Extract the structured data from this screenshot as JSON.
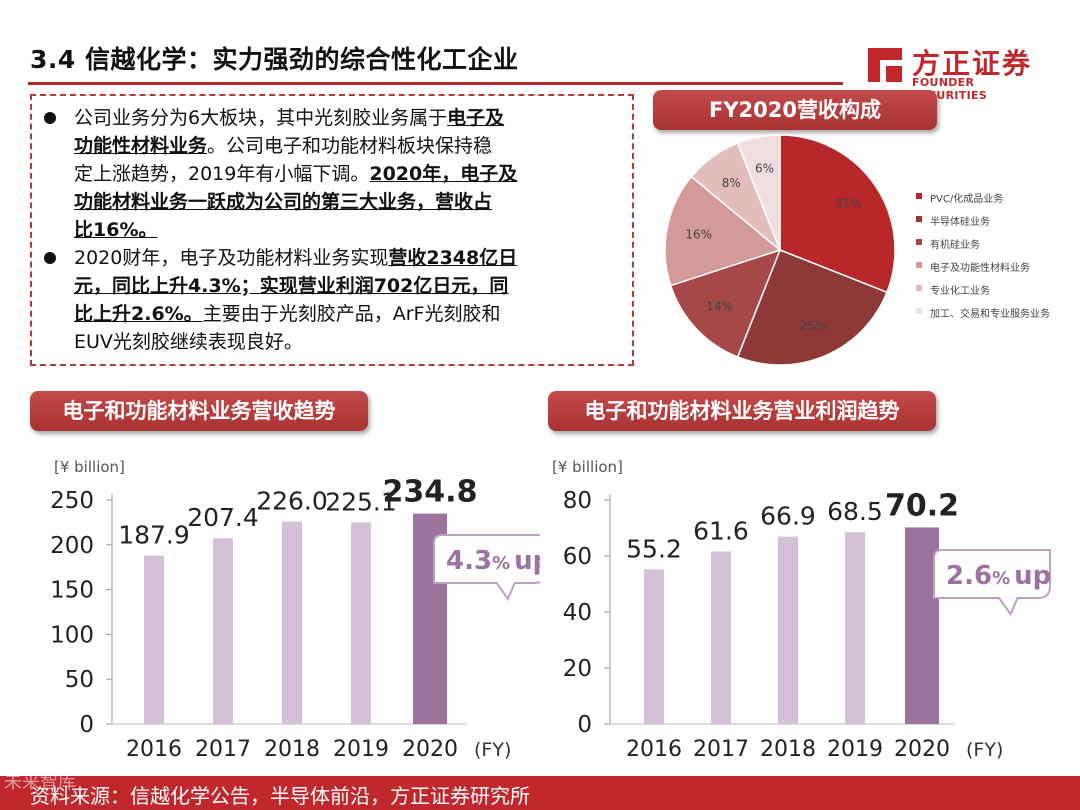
{
  "header": {
    "title": "3.4 信越化学：实力强劲的综合性化工企业",
    "logo_cn": "方正证券",
    "logo_en": "FOUNDER SECURITIES"
  },
  "bullets": {
    "b1_lines": [
      [
        "公司业务分为6大板块，其中光刻胶业务属于",
        "电子及"
      ],
      [
        "",
        "功能性材料业务",
        "。公司电子和功能材料板块保持稳"
      ],
      [
        "定上涨趋势，2019年有小幅下调。",
        "2020年，电子及"
      ],
      [
        "",
        "功能材料业务一跃成为公司的第三大业务，营收占"
      ],
      [
        "",
        "比16%。"
      ]
    ],
    "b2_lines": [
      [
        "2020财年，电子及功能材料业务实现",
        "营收2348亿日"
      ],
      [
        "",
        "元，同比上升4.3%；实现营业利润702亿日元，同"
      ],
      [
        "",
        "比上升2.6%。",
        "主要由于光刻胶产品，ArF光刻胶和"
      ],
      [
        "EUV光刻胶继续表现良好。"
      ]
    ]
  },
  "pie_title": "FY2020营收构成",
  "left_chart_title": "电子和功能材料业务营收趋势",
  "right_chart_title": "电子和功能材料业务营业利润趋势",
  "footer": {
    "source": "资料来源：信越化学公告，半导体前沿，方正证券研究所",
    "watermark": "未来智库"
  },
  "colors": {
    "brand_red": "#c0282d",
    "bar_light": "#d4c1d8",
    "bar_highlight": "#9c729f",
    "callout_text": "#9c729f"
  },
  "chart_data": [
    {
      "type": "pie",
      "title": "FY2020营收构成",
      "labels": [
        "PVC/化成品业务",
        "半导体硅业务",
        "有机硅业务",
        "电子及功能性材料业务",
        "专业化工业务",
        "加工、交易和专业服务业务"
      ],
      "values": [
        31,
        25,
        14,
        16,
        8,
        6
      ],
      "value_labels": [
        "31%",
        "25%",
        "14%",
        "16%",
        "8%",
        "6%"
      ],
      "colors": [
        "#b8282b",
        "#8f3838",
        "#a64848",
        "#d49a9a",
        "#e3bcbc",
        "#f0dede"
      ],
      "legend_position": "right"
    },
    {
      "type": "bar",
      "title": "电子和功能材料业务营收趋势",
      "unit_label": "[¥ billion]",
      "categories": [
        "2016",
        "2017",
        "2018",
        "2019",
        "2020"
      ],
      "values": [
        187.9,
        207.4,
        226.0,
        225.1,
        234.8
      ],
      "value_labels": [
        "187.9",
        "207.4",
        "226.0",
        "225.1",
        "234.8"
      ],
      "highlight_index": 4,
      "x_suffix": "(FY)",
      "ylim": [
        0,
        250
      ],
      "yticks": [
        0,
        50,
        100,
        150,
        200,
        250
      ],
      "callout": {
        "number": "4.3",
        "percent": "%",
        "word": "up"
      }
    },
    {
      "type": "bar",
      "title": "电子和功能材料业务营业利润趋势",
      "unit_label": "[¥ billion]",
      "categories": [
        "2016",
        "2017",
        "2018",
        "2019",
        "2020"
      ],
      "values": [
        55.2,
        61.6,
        66.9,
        68.5,
        70.2
      ],
      "value_labels": [
        "55.2",
        "61.6",
        "66.9",
        "68.5",
        "70.2"
      ],
      "highlight_index": 4,
      "x_suffix": "(FY)",
      "ylim": [
        0,
        80
      ],
      "yticks": [
        0,
        20,
        40,
        60,
        80
      ],
      "callout": {
        "number": "2.6",
        "percent": "%",
        "word": "up"
      }
    }
  ]
}
